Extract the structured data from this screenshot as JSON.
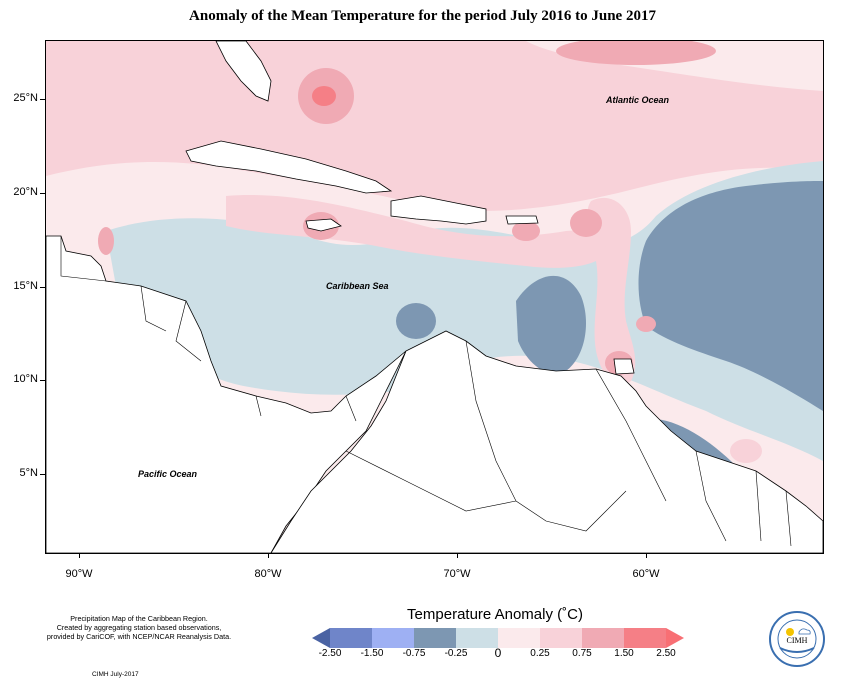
{
  "title": "Anomaly of the Mean Temperature for the period July 2016 to June 2017",
  "axes": {
    "lat_labels": [
      "25°N",
      "20°N",
      "15°N",
      "10°N",
      "5°N"
    ],
    "lon_labels": [
      "90°W",
      "80°W",
      "70°W",
      "60°W"
    ]
  },
  "map_labels": {
    "atlantic": "Atlantic Ocean",
    "caribbean": "Caribbean Sea",
    "pacific": "Pacific Ocean"
  },
  "credits": {
    "line1": "Precipitation Map of the Caribbean Region.",
    "line2": "Created by aggregating station based observations,",
    "line3": "provided by CariCOF, with NCEP/NCAR Reanalysis Data.",
    "date": "CIMH July-2017"
  },
  "legend": {
    "title": "Temperature Anomaly (˚C)",
    "labels": [
      "-2.50",
      "-1.50",
      "-0.75",
      "-0.25",
      "0",
      "0.25",
      "0.75",
      "1.50",
      "2.50"
    ],
    "colors": [
      "#4a63a3",
      "#6f85c9",
      "#9eb0f3",
      "#7d97b2",
      "#cddfe6",
      "#fbeaec",
      "#f8d2d9",
      "#f0aab4",
      "#f57f86",
      "#f86f74"
    ]
  },
  "logo": {
    "text": "CIMH"
  },
  "colors": {
    "land": "#ffffff",
    "border": "#000000",
    "anom_neg_strong": "#7d97b2",
    "anom_neg_light": "#cddfe6",
    "anom_pos_light": "#fbeaec",
    "anom_pos_mid": "#f8d2d9",
    "anom_pos_strong": "#f0aab4",
    "anom_pos_max": "#f57f86",
    "anom_cold_core": "#9eb0f3"
  }
}
